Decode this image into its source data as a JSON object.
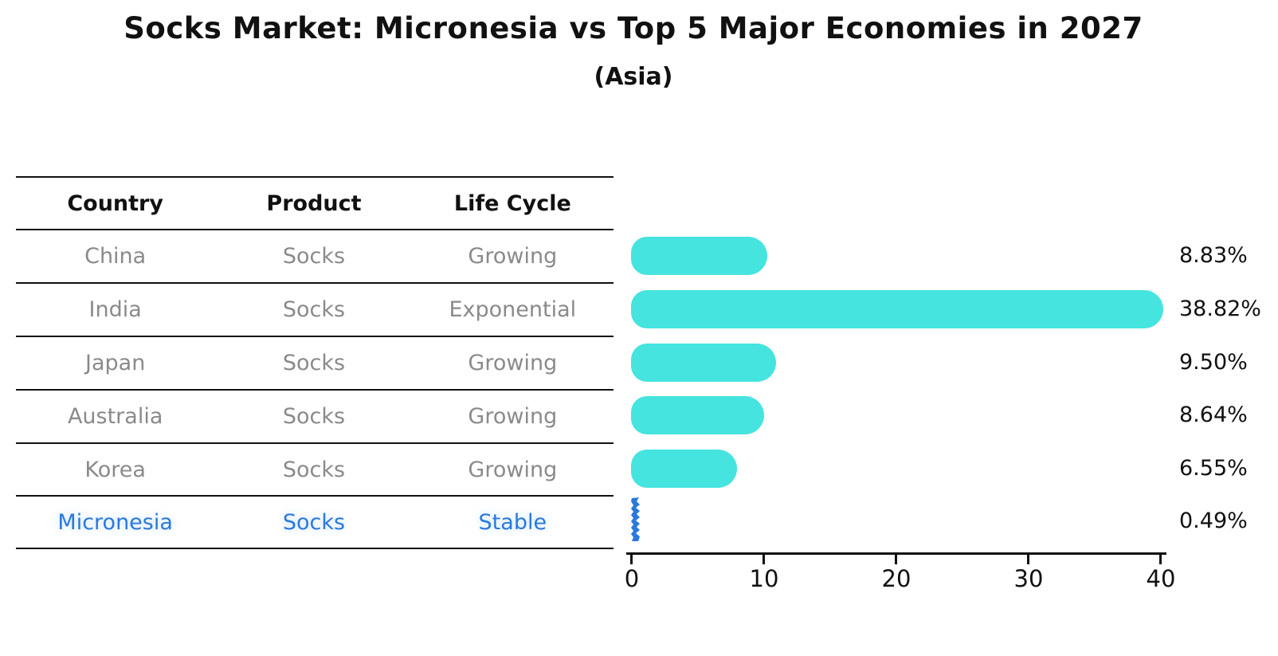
{
  "title": "Socks Market: Micronesia vs Top 5 Major Economies in 2027",
  "subtitle": "(Asia)",
  "table": {
    "headers": [
      "Country",
      "Product",
      "Life Cycle"
    ],
    "rows": [
      {
        "country": "China",
        "product": "Socks",
        "life_cycle": "Growing",
        "share": "8.83%"
      },
      {
        "country": "India",
        "product": "Socks",
        "life_cycle": "Exponential",
        "share": "38.82%"
      },
      {
        "country": "Japan",
        "product": "Socks",
        "life_cycle": "Growing",
        "share": "9.50%"
      },
      {
        "country": "Australia",
        "product": "Socks",
        "life_cycle": "Growing",
        "share": "8.64%"
      },
      {
        "country": "Korea",
        "product": "Socks",
        "life_cycle": "Growing",
        "share": "6.55%"
      },
      {
        "country": "Micronesia",
        "product": "Socks",
        "life_cycle": "Stable",
        "share": "0.49%"
      }
    ]
  },
  "chart_data": {
    "type": "bar",
    "orientation": "horizontal",
    "title": "Socks Market: Micronesia vs Top 5 Major Economies in 2027",
    "subtitle": "(Asia)",
    "categories": [
      "China",
      "India",
      "Japan",
      "Australia",
      "Korea",
      "Micronesia"
    ],
    "values": [
      8.83,
      38.82,
      9.5,
      8.64,
      6.55,
      0.49
    ],
    "value_labels": [
      "8.83%",
      "38.82%",
      "9.50%",
      "8.64%",
      "6.55%",
      "0.49%"
    ],
    "xlabel": "",
    "ylabel": "",
    "xlim": [
      0,
      40
    ],
    "xticks": [
      0,
      10,
      20,
      30,
      40
    ],
    "grid": "off",
    "legend": "none",
    "bar_color": "#45E4DF",
    "highlight_color": "#2A79DB",
    "highlight_index": 5
  }
}
